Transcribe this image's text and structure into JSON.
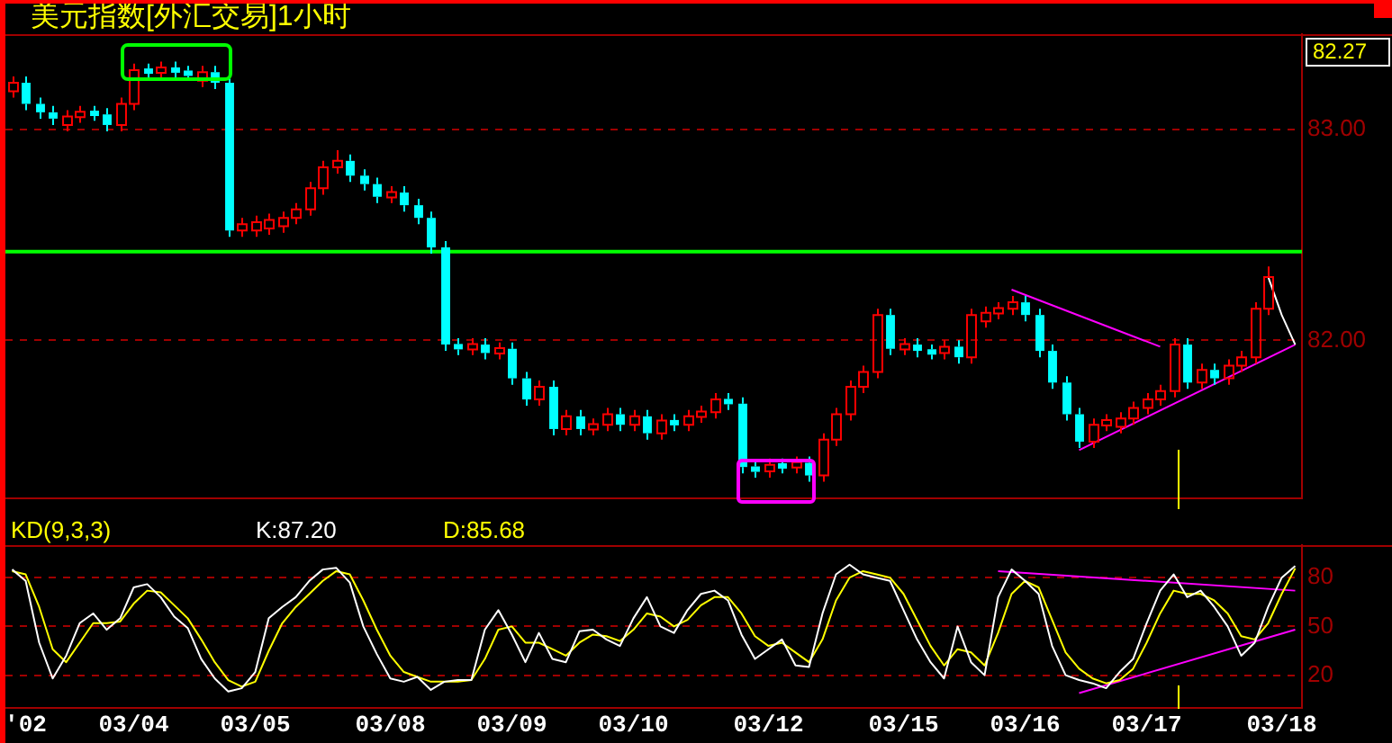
{
  "chart_data": [
    {
      "type": "candlestick",
      "title": "美元指数[外汇交易]1小时",
      "categories": [
        null,
        null,
        null,
        null,
        null,
        null,
        null,
        null,
        null,
        null,
        null,
        null,
        null,
        null,
        null,
        null,
        null,
        null,
        null,
        null,
        null,
        null,
        null,
        null,
        null,
        null,
        null,
        null,
        null,
        null,
        null,
        null,
        null,
        null,
        null,
        null,
        null,
        null,
        null,
        null,
        null,
        null,
        null,
        null,
        null,
        null,
        null,
        null,
        null,
        null,
        null,
        null,
        null,
        null,
        null,
        null,
        null,
        null,
        null,
        null,
        null,
        null,
        null,
        null,
        null,
        null,
        null,
        null,
        null,
        null,
        null,
        null,
        null,
        null,
        null,
        null,
        null,
        null,
        null,
        null,
        null,
        null,
        null,
        null,
        null,
        null,
        null,
        null,
        null,
        null,
        null,
        null,
        null,
        null,
        null,
        null
      ],
      "series": [
        {
          "type": "candlestick",
          "ohlc": [
            [
              83.18,
              83.25,
              83.15,
              83.22
            ],
            [
              83.22,
              83.25,
              83.09,
              83.12
            ],
            [
              83.12,
              83.15,
              83.05,
              83.08
            ],
            [
              83.08,
              83.11,
              83.02,
              83.05
            ],
            [
              83.02,
              83.09,
              82.99,
              83.06
            ],
            [
              83.06,
              83.11,
              83.03,
              83.08
            ],
            [
              83.08,
              83.11,
              83.04,
              83.07
            ],
            [
              83.07,
              83.1,
              82.99,
              83.02
            ],
            [
              83.02,
              83.15,
              82.99,
              83.12
            ],
            [
              83.12,
              83.31,
              83.09,
              83.28
            ],
            [
              83.28,
              83.31,
              83.24,
              83.27
            ],
            [
              83.27,
              83.32,
              83.24,
              83.29
            ],
            [
              83.29,
              83.32,
              83.24,
              83.27
            ],
            [
              83.27,
              83.3,
              83.23,
              83.26
            ],
            [
              83.23,
              83.3,
              83.2,
              83.27
            ],
            [
              83.27,
              83.3,
              83.19,
              83.22
            ],
            [
              83.22,
              83.25,
              82.49,
              82.52
            ],
            [
              82.52,
              82.58,
              82.49,
              82.55
            ],
            [
              82.52,
              82.59,
              82.49,
              82.56
            ],
            [
              82.53,
              82.6,
              82.5,
              82.57
            ],
            [
              82.54,
              82.61,
              82.51,
              82.58
            ],
            [
              82.58,
              82.65,
              82.55,
              82.62
            ],
            [
              82.62,
              82.75,
              82.59,
              82.72
            ],
            [
              82.72,
              82.85,
              82.69,
              82.82
            ],
            [
              82.82,
              82.9,
              82.79,
              82.85
            ],
            [
              82.85,
              82.88,
              82.75,
              82.78
            ],
            [
              82.78,
              82.81,
              82.71,
              82.74
            ],
            [
              82.74,
              82.77,
              82.65,
              82.68
            ],
            [
              82.68,
              82.73,
              82.65,
              82.7
            ],
            [
              82.7,
              82.73,
              82.61,
              82.64
            ],
            [
              82.64,
              82.67,
              82.55,
              82.58
            ],
            [
              82.58,
              82.61,
              82.41,
              82.44
            ],
            [
              82.44,
              82.47,
              81.95,
              81.98
            ],
            [
              81.98,
              82.01,
              81.93,
              81.96
            ],
            [
              81.96,
              82.01,
              81.93,
              81.98
            ],
            [
              81.98,
              82.01,
              81.91,
              81.94
            ],
            [
              81.94,
              81.99,
              81.91,
              81.96
            ],
            [
              81.96,
              81.99,
              81.79,
              81.82
            ],
            [
              81.82,
              81.85,
              81.69,
              81.72
            ],
            [
              81.72,
              81.81,
              81.69,
              81.78
            ],
            [
              81.78,
              81.81,
              81.55,
              81.58
            ],
            [
              81.58,
              81.67,
              81.55,
              81.64
            ],
            [
              81.64,
              81.67,
              81.55,
              81.58
            ],
            [
              81.58,
              81.63,
              81.55,
              81.6
            ],
            [
              81.6,
              81.68,
              81.57,
              81.65
            ],
            [
              81.65,
              81.68,
              81.57,
              81.6
            ],
            [
              81.6,
              81.67,
              81.57,
              81.64
            ],
            [
              81.64,
              81.67,
              81.53,
              81.56
            ],
            [
              81.56,
              81.65,
              81.53,
              81.62
            ],
            [
              81.62,
              81.65,
              81.57,
              81.6
            ],
            [
              81.6,
              81.67,
              81.57,
              81.64
            ],
            [
              81.64,
              81.69,
              81.61,
              81.66
            ],
            [
              81.66,
              81.75,
              81.63,
              81.72
            ],
            [
              81.72,
              81.75,
              81.67,
              81.7
            ],
            [
              81.7,
              81.73,
              81.37,
              81.4
            ],
            [
              81.4,
              81.43,
              81.35,
              81.38
            ],
            [
              81.38,
              81.44,
              81.35,
              81.41
            ],
            [
              81.41,
              81.44,
              81.37,
              81.4
            ],
            [
              81.4,
              81.45,
              81.37,
              81.42
            ],
            [
              81.42,
              81.45,
              81.33,
              81.36
            ],
            [
              81.36,
              81.56,
              81.33,
              81.53
            ],
            [
              81.53,
              81.68,
              81.5,
              81.65
            ],
            [
              81.65,
              81.81,
              81.62,
              81.78
            ],
            [
              81.78,
              81.88,
              81.75,
              81.85
            ],
            [
              81.85,
              82.15,
              81.82,
              82.12
            ],
            [
              82.12,
              82.15,
              81.93,
              81.96
            ],
            [
              81.96,
              82.01,
              81.93,
              81.98
            ],
            [
              81.98,
              82.01,
              81.92,
              81.95
            ],
            [
              81.95,
              81.98,
              81.91,
              81.94
            ],
            [
              81.94,
              82.0,
              81.91,
              81.97
            ],
            [
              81.97,
              82.0,
              81.89,
              81.92
            ],
            [
              81.92,
              82.15,
              81.89,
              82.12
            ],
            [
              82.09,
              82.16,
              82.06,
              82.13
            ],
            [
              82.13,
              82.18,
              82.1,
              82.15
            ],
            [
              82.15,
              82.21,
              82.12,
              82.18
            ],
            [
              82.18,
              82.21,
              82.09,
              82.12
            ],
            [
              82.12,
              82.15,
              81.92,
              81.95
            ],
            [
              81.95,
              81.98,
              81.77,
              81.8
            ],
            [
              81.8,
              81.83,
              81.62,
              81.65
            ],
            [
              81.65,
              81.68,
              81.49,
              81.52
            ],
            [
              81.52,
              81.63,
              81.49,
              81.6
            ],
            [
              81.6,
              81.65,
              81.57,
              81.62
            ],
            [
              81.59,
              81.66,
              81.56,
              81.63
            ],
            [
              81.63,
              81.71,
              81.6,
              81.68
            ],
            [
              81.68,
              81.75,
              81.65,
              81.72
            ],
            [
              81.72,
              81.79,
              81.69,
              81.76
            ],
            [
              81.76,
              82.01,
              81.73,
              81.98
            ],
            [
              81.98,
              82.01,
              81.77,
              81.8
            ],
            [
              81.8,
              81.89,
              81.77,
              81.86
            ],
            [
              81.86,
              81.89,
              81.79,
              81.82
            ],
            [
              81.82,
              81.91,
              81.79,
              81.88
            ],
            [
              81.88,
              81.95,
              81.85,
              81.92
            ],
            [
              81.92,
              82.18,
              81.89,
              82.15
            ],
            [
              82.15,
              82.35,
              82.12,
              82.3
            ],
            null,
            null
          ],
          "colors": [
            "#ff0000",
            "#00ffff",
            "#00ffff",
            "#00ffff",
            "#ff0000",
            "#ff0000",
            "#00ffff",
            "#00ffff",
            "#ff0000",
            "#ff0000",
            "#00ffff",
            "#ff0000",
            "#00ffff",
            "#00ffff",
            "#ff0000",
            "#00ffff",
            "#00ffff",
            "#ff0000",
            "#ff0000",
            "#ff0000",
            "#ff0000",
            "#ff0000",
            "#ff0000",
            "#ff0000",
            "#ff0000",
            "#00ffff",
            "#00ffff",
            "#00ffff",
            "#ff0000",
            "#00ffff",
            "#00ffff",
            "#00ffff",
            "#00ffff",
            "#00ffff",
            "#ff0000",
            "#00ffff",
            "#ff0000",
            "#00ffff",
            "#00ffff",
            "#ff0000",
            "#00ffff",
            "#ff0000",
            "#00ffff",
            "#ff0000",
            "#ff0000",
            "#00ffff",
            "#ff0000",
            "#00ffff",
            "#ff0000",
            "#00ffff",
            "#ff0000",
            "#ff0000",
            "#ff0000",
            "#00ffff",
            "#00ffff",
            "#00ffff",
            "#ff0000",
            "#00ffff",
            "#ff0000",
            "#00ffff",
            "#ff0000",
            "#ff0000",
            "#ff0000",
            "#ff0000",
            "#ff0000",
            "#00ffff",
            "#ff0000",
            "#00ffff",
            "#00ffff",
            "#ff0000",
            "#00ffff",
            "#ff0000",
            "#ff0000",
            "#ff0000",
            "#ff0000",
            "#00ffff",
            "#00ffff",
            "#00ffff",
            "#00ffff",
            "#00ffff",
            "#ff0000",
            "#ff0000",
            "#ff0000",
            "#ff0000",
            "#ff0000",
            "#ff0000",
            "#ff0000",
            "#00ffff",
            "#ff0000",
            "#00ffff",
            "#ff0000",
            "#ff0000",
            "#ff0000",
            "#ff0000",
            null,
            null
          ]
        },
        {
          "type": "line",
          "color": "#ffffff",
          "values": [
            null,
            null,
            null,
            null,
            null,
            null,
            null,
            null,
            null,
            null,
            null,
            null,
            null,
            null,
            null,
            null,
            null,
            null,
            null,
            null,
            null,
            null,
            null,
            null,
            null,
            null,
            null,
            null,
            null,
            null,
            null,
            null,
            null,
            null,
            null,
            null,
            null,
            null,
            null,
            null,
            null,
            null,
            null,
            null,
            null,
            null,
            null,
            null,
            null,
            null,
            null,
            null,
            null,
            null,
            null,
            null,
            null,
            null,
            null,
            null,
            null,
            null,
            null,
            null,
            null,
            null,
            null,
            null,
            null,
            null,
            null,
            null,
            null,
            null,
            null,
            null,
            null,
            null,
            null,
            null,
            null,
            null,
            null,
            null,
            null,
            null,
            null,
            null,
            null,
            null,
            null,
            null,
            null,
            82.3,
            82.12,
            81.98
          ]
        },
        {
          "type": "line",
          "color": "#ff00ff",
          "values": [
            null,
            null,
            null,
            null,
            null,
            null,
            null,
            null,
            null,
            null,
            null,
            null,
            null,
            null,
            null,
            null,
            null,
            null,
            null,
            null,
            null,
            null,
            null,
            null,
            null,
            null,
            null,
            null,
            null,
            null,
            null,
            null,
            null,
            null,
            null,
            null,
            null,
            null,
            null,
            null,
            null,
            null,
            null,
            null,
            null,
            null,
            null,
            null,
            null,
            null,
            null,
            null,
            null,
            null,
            null,
            null,
            null,
            null,
            null,
            null,
            null,
            null,
            null,
            null,
            null,
            null,
            null,
            null,
            null,
            null,
            null,
            null,
            null,
            null,
            82.24,
            null,
            null,
            null,
            null,
            null,
            null,
            null,
            null,
            null,
            null,
            81.97,
            null,
            null,
            null,
            null,
            null,
            null,
            null,
            null,
            null,
            null
          ]
        },
        {
          "type": "line",
          "color": "#ff00ff",
          "values": [
            null,
            null,
            null,
            null,
            null,
            null,
            null,
            null,
            null,
            null,
            null,
            null,
            null,
            null,
            null,
            null,
            null,
            null,
            null,
            null,
            null,
            null,
            null,
            null,
            null,
            null,
            null,
            null,
            null,
            null,
            null,
            null,
            null,
            null,
            null,
            null,
            null,
            null,
            null,
            null,
            null,
            null,
            null,
            null,
            null,
            null,
            null,
            null,
            null,
            null,
            null,
            null,
            null,
            null,
            null,
            null,
            null,
            null,
            null,
            null,
            null,
            null,
            null,
            null,
            null,
            null,
            null,
            null,
            null,
            null,
            null,
            null,
            null,
            null,
            null,
            null,
            null,
            null,
            null,
            81.48,
            null,
            null,
            null,
            null,
            null,
            null,
            null,
            null,
            null,
            null,
            null,
            null,
            null,
            null,
            null,
            81.98
          ]
        }
      ],
      "ylim": [
        81.25,
        83.45
      ],
      "yticks": [
        {
          "value": 83,
          "label": "83.00"
        },
        {
          "value": 82,
          "label": "82.00"
        }
      ],
      "grid": "y",
      "tick_labels": "y",
      "ref_lines": [
        {
          "axis": "y",
          "value": 82.42,
          "color": "#00ff00"
        }
      ],
      "annotations": [
        "82.27"
      ]
    },
    {
      "type": "line",
      "title": "KD(9,3,3)",
      "categories": [
        null,
        "'02",
        null,
        null,
        null,
        null,
        null,
        null,
        null,
        "03/04",
        null,
        null,
        null,
        null,
        null,
        null,
        null,
        null,
        "03/05",
        null,
        null,
        null,
        null,
        null,
        null,
        null,
        null,
        null,
        "03/08",
        null,
        null,
        null,
        null,
        null,
        null,
        null,
        null,
        "03/09",
        null,
        null,
        null,
        null,
        null,
        null,
        null,
        null,
        "03/10",
        null,
        null,
        null,
        null,
        null,
        null,
        null,
        null,
        null,
        "03/12",
        null,
        null,
        null,
        null,
        null,
        null,
        null,
        null,
        null,
        "03/15",
        null,
        null,
        null,
        null,
        null,
        null,
        null,
        null,
        "03/16",
        null,
        null,
        null,
        null,
        null,
        null,
        null,
        null,
        "03/17",
        null,
        null,
        null,
        null,
        null,
        null,
        null,
        null,
        null,
        "03/18",
        null
      ],
      "series": [
        {
          "name": "K:87.20",
          "color": "#ffffff",
          "values": [
            85,
            78,
            40,
            18,
            32,
            52,
            58,
            48,
            55,
            74,
            76,
            68,
            56,
            49,
            30,
            18,
            10,
            12,
            22,
            55,
            62,
            68,
            78,
            85,
            86,
            77,
            50,
            33,
            18,
            16,
            19,
            11,
            16,
            17,
            17,
            48,
            60,
            45,
            28,
            46,
            30,
            28,
            47,
            48,
            42,
            38,
            55,
            68,
            50,
            46,
            60,
            70,
            72,
            66,
            45,
            30,
            36,
            42,
            26,
            25,
            58,
            82,
            88,
            82,
            80,
            78,
            60,
            42,
            28,
            18,
            50,
            28,
            20,
            68,
            85,
            78,
            70,
            38,
            20,
            17,
            15,
            12,
            22,
            30,
            52,
            72,
            82,
            68,
            72,
            62,
            50,
            32,
            40,
            62,
            80,
            87.2
          ]
        },
        {
          "name": "D:85.68",
          "color": "#ffff00",
          "values": [
            84,
            82,
            62,
            36,
            28,
            40,
            52,
            52,
            53,
            64,
            72,
            71,
            63,
            55,
            42,
            28,
            17,
            13,
            16,
            35,
            52,
            62,
            70,
            78,
            84,
            82,
            66,
            48,
            32,
            22,
            19,
            16,
            16,
            16,
            17,
            30,
            48,
            50,
            40,
            40,
            36,
            32,
            40,
            45,
            44,
            41,
            48,
            58,
            56,
            50,
            54,
            63,
            68,
            68,
            58,
            44,
            38,
            40,
            34,
            28,
            42,
            66,
            80,
            84,
            82,
            80,
            70,
            54,
            38,
            26,
            36,
            34,
            26,
            46,
            70,
            78,
            74,
            54,
            34,
            24,
            18,
            15,
            17,
            24,
            40,
            58,
            72,
            70,
            70,
            66,
            58,
            44,
            42,
            52,
            70,
            85.68
          ]
        },
        {
          "type": "line",
          "color": "#ff00ff",
          "values": [
            null,
            null,
            null,
            null,
            null,
            null,
            null,
            null,
            null,
            null,
            null,
            null,
            null,
            null,
            null,
            null,
            null,
            null,
            null,
            null,
            null,
            null,
            null,
            null,
            null,
            null,
            null,
            null,
            null,
            null,
            null,
            null,
            null,
            null,
            null,
            null,
            null,
            null,
            null,
            null,
            null,
            null,
            null,
            null,
            null,
            null,
            null,
            null,
            null,
            null,
            null,
            null,
            null,
            null,
            null,
            null,
            null,
            null,
            null,
            null,
            null,
            null,
            null,
            null,
            null,
            null,
            null,
            null,
            null,
            null,
            null,
            null,
            null,
            84,
            null,
            null,
            null,
            null,
            null,
            null,
            null,
            null,
            null,
            null,
            null,
            null,
            null,
            null,
            null,
            null,
            null,
            null,
            null,
            null,
            null,
            72
          ]
        },
        {
          "type": "line",
          "color": "#ff00ff",
          "values": [
            null,
            null,
            null,
            null,
            null,
            null,
            null,
            null,
            null,
            null,
            null,
            null,
            null,
            null,
            null,
            null,
            null,
            null,
            null,
            null,
            null,
            null,
            null,
            null,
            null,
            null,
            null,
            null,
            null,
            null,
            null,
            null,
            null,
            null,
            null,
            null,
            null,
            null,
            null,
            null,
            null,
            null,
            null,
            null,
            null,
            null,
            null,
            null,
            null,
            null,
            null,
            null,
            null,
            null,
            null,
            null,
            null,
            null,
            null,
            null,
            null,
            null,
            null,
            null,
            null,
            null,
            null,
            null,
            null,
            null,
            null,
            null,
            null,
            null,
            null,
            null,
            null,
            null,
            null,
            9,
            null,
            null,
            null,
            null,
            null,
            null,
            null,
            null,
            null,
            null,
            null,
            null,
            null,
            null,
            null,
            48
          ]
        }
      ],
      "ylim": [
        0,
        100
      ],
      "yticks": [
        20,
        50,
        80
      ],
      "grid": "y",
      "legend": "top"
    }
  ]
}
